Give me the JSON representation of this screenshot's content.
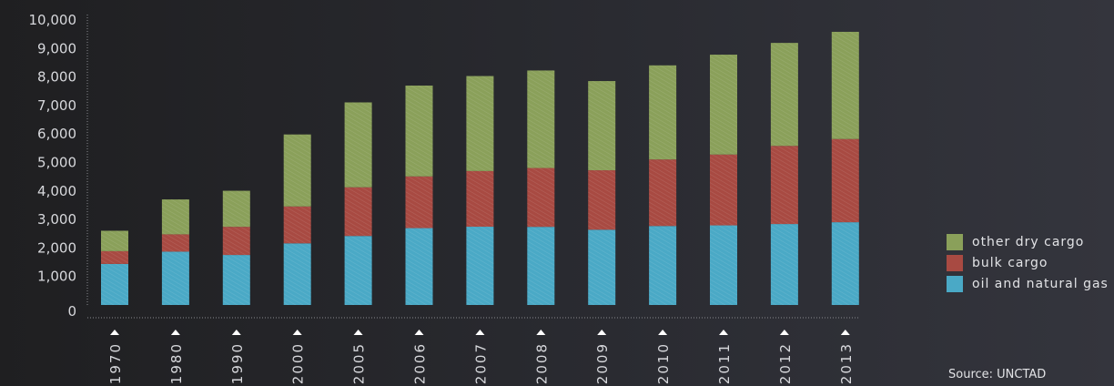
{
  "chart_data": {
    "type": "bar",
    "stacked": true,
    "categories": [
      "1970",
      "1980",
      "1990",
      "2000",
      "2005",
      "2006",
      "2007",
      "2008",
      "2009",
      "2010",
      "2011",
      "2012",
      "2013"
    ],
    "series": [
      {
        "name": "oil and natural gas",
        "color": "#4aa9c6",
        "values": [
          1440,
          1871,
          1755,
          2163,
          2422,
          2698,
          2747,
          2742,
          2642,
          2772,
          2794,
          2841,
          2904
        ]
      },
      {
        "name": "bulk cargo",
        "color": "#a84a42",
        "values": [
          448,
          608,
          988,
          1295,
          1709,
          1814,
          1953,
          2065,
          2085,
          2335,
          2486,
          2742,
          2920
        ]
      },
      {
        "name": "other dry cargo",
        "color": "#8aa05a",
        "values": [
          717,
          1225,
          1265,
          2526,
          2978,
          3188,
          3334,
          3422,
          3131,
          3302,
          3505,
          3614,
          3762
        ]
      }
    ],
    "yticks": [
      "0",
      "1,000",
      "2,000",
      "3,000",
      "4,000",
      "5,000",
      "6,000",
      "7,000",
      "8,000",
      "9,000",
      "10,000"
    ],
    "ylim": [
      0,
      10000
    ],
    "legend_position": "right",
    "grid": false
  },
  "source": "Source: UNCTAD",
  "legend": [
    {
      "label": "other dry cargo",
      "color": "#8aa05a"
    },
    {
      "label": "bulk cargo",
      "color": "#a84a42"
    },
    {
      "label": "oil and natural gas",
      "color": "#4aa9c6"
    }
  ]
}
